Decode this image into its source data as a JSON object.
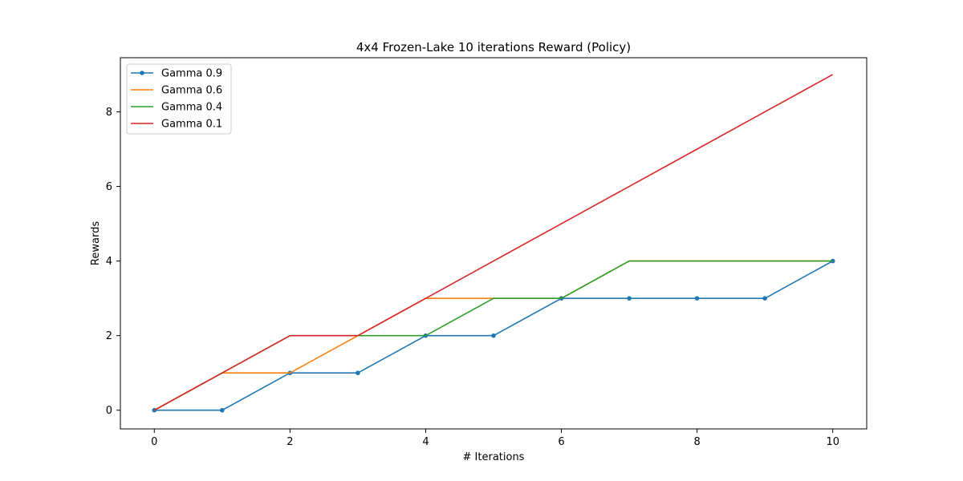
{
  "chart_data": {
    "type": "line",
    "title": "4x4 Frozen-Lake 10 iterations  Reward (Policy)",
    "xlabel": "# Iterations",
    "ylabel": "Rewards",
    "xlim": [
      -0.5,
      10.5
    ],
    "ylim": [
      -0.5,
      9.45
    ],
    "xticks": [
      0,
      2,
      4,
      6,
      8,
      10
    ],
    "yticks": [
      0,
      2,
      4,
      6,
      8
    ],
    "grid": false,
    "legend_position": "top-left",
    "x": [
      0,
      1,
      2,
      3,
      4,
      5,
      6,
      7,
      8,
      9,
      10
    ],
    "series": [
      {
        "name": "Gamma 0.9",
        "color": "#1f77b4",
        "marker": "dot",
        "values": [
          0,
          0,
          1,
          1,
          2,
          2,
          3,
          3,
          3,
          3,
          4
        ]
      },
      {
        "name": "Gamma 0.6",
        "color": "#ff7f0e",
        "marker": "none",
        "values": [
          0,
          1,
          1,
          2,
          3,
          3,
          3,
          4,
          4,
          4,
          4
        ]
      },
      {
        "name": "Gamma 0.4",
        "color": "#2ca02c",
        "marker": "none",
        "values": [
          0,
          1,
          2,
          2,
          2,
          3,
          3,
          4,
          4,
          4,
          4
        ]
      },
      {
        "name": "Gamma 0.1",
        "color": "#d62728",
        "marker": "none",
        "values": [
          0,
          1,
          2,
          2,
          3,
          4,
          5,
          6,
          7,
          8,
          9
        ]
      }
    ]
  }
}
